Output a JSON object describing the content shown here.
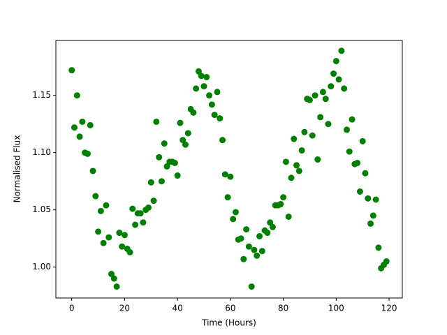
{
  "chart_data": {
    "type": "scatter",
    "xlabel": "Time (Hours)",
    "ylabel": "Normalised Flux",
    "color": "#008000",
    "x": [
      0,
      1,
      2,
      3,
      4,
      5,
      6,
      7,
      8,
      9,
      10,
      11,
      12,
      13,
      14,
      15,
      16,
      17,
      18,
      19,
      20,
      21,
      22,
      23,
      24,
      25,
      26,
      27,
      28,
      29,
      30,
      31,
      32,
      33,
      34,
      35,
      36,
      37,
      38,
      39,
      40,
      41,
      42,
      43,
      44,
      45,
      46,
      47,
      48,
      49,
      50,
      51,
      52,
      53,
      54,
      55,
      56,
      57,
      58,
      59,
      60,
      61,
      62,
      63,
      64,
      65,
      66,
      67,
      68,
      69,
      70,
      71,
      72,
      73,
      74,
      75,
      76,
      77,
      78,
      79,
      80,
      81,
      82,
      83,
      84,
      85,
      86,
      87,
      88,
      89,
      90,
      91,
      92,
      93,
      94,
      95,
      96,
      97,
      98,
      99,
      100,
      101,
      102,
      103,
      104,
      105,
      106,
      107,
      108,
      109,
      110,
      111,
      112,
      113,
      114,
      115,
      116,
      117,
      118,
      119
    ],
    "values": [
      1.172,
      1.122,
      1.15,
      1.114,
      1.127,
      1.1,
      1.099,
      1.124,
      1.084,
      1.062,
      1.031,
      1.049,
      1.021,
      1.054,
      1.026,
      0.994,
      0.99,
      0.983,
      1.03,
      1.018,
      1.028,
      1.016,
      1.013,
      1.051,
      1.037,
      1.047,
      1.047,
      1.039,
      1.05,
      1.052,
      1.074,
      1.058,
      1.127,
      1.096,
      1.075,
      1.108,
      1.088,
      1.092,
      1.092,
      1.091,
      1.08,
      1.126,
      1.111,
      1.107,
      1.117,
      1.138,
      1.135,
      1.156,
      1.171,
      1.167,
      1.158,
      1.166,
      1.15,
      1.142,
      1.133,
      1.153,
      1.13,
      1.111,
      1.081,
      1.061,
      1.079,
      1.042,
      1.048,
      1.024,
      1.025,
      1.007,
      1.033,
      1.018,
      0.983,
      1.015,
      1.01,
      1.027,
      1.014,
      1.032,
      1.03,
      1.039,
      1.035,
      1.054,
      1.054,
      1.055,
      1.061,
      1.092,
      1.044,
      1.078,
      1.112,
      1.089,
      1.084,
      1.102,
      1.118,
      1.147,
      1.146,
      1.115,
      1.15,
      1.094,
      1.131,
      1.153,
      1.147,
      1.125,
      1.158,
      1.169,
      1.18,
      1.164,
      1.189,
      1.156,
      1.12,
      1.101,
      1.129,
      1.09,
      1.091,
      1.066,
      1.11,
      1.082,
      1.06,
      1.038,
      1.045,
      1.059,
      1.017,
      0.999,
      1.002,
      1.005
    ],
    "xlim": [
      -6,
      125
    ],
    "ylim": [
      0.973,
      1.198
    ],
    "xticks": [
      0,
      20,
      40,
      60,
      80,
      100,
      120
    ],
    "yticks": [
      {
        "value": 1.0,
        "label": "1.00"
      },
      1.05,
      {
        "value": 1.1,
        "label": "1.10"
      },
      1.15
    ]
  }
}
